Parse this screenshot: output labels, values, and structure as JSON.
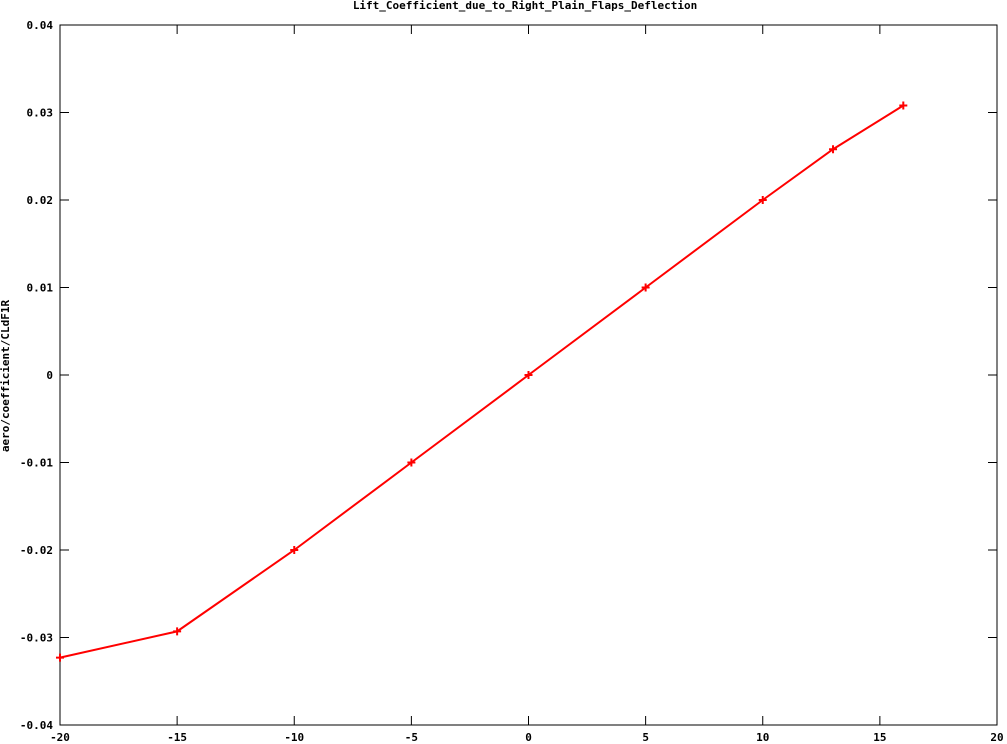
{
  "chart_data": {
    "type": "line",
    "title": "Lift_Coefficient_due_to_Right_Plain_Flaps_Deflection",
    "xlabel": "",
    "ylabel": "aero/coefficient/CLdF1R",
    "xlim": [
      -20,
      20
    ],
    "ylim": [
      -0.04,
      0.04
    ],
    "x_ticks": [
      -20,
      -15,
      -10,
      -5,
      0,
      5,
      10,
      15,
      20
    ],
    "y_ticks": [
      -0.04,
      -0.03,
      -0.02,
      -0.01,
      0,
      0.01,
      0.02,
      0.03,
      0.04
    ],
    "x_tick_labels": [
      "-20",
      "-15",
      "-10",
      "-5",
      "0",
      "5",
      "10",
      "15",
      "20"
    ],
    "y_tick_labels": [
      "-0.04",
      "-0.03",
      "-0.02",
      "-0.01",
      "0",
      "0.01",
      "0.02",
      "0.03",
      "0.04"
    ],
    "grid": false,
    "series": [
      {
        "name": "CLdF1R",
        "color": "#ff0000",
        "marker": "plus",
        "x": [
          -20,
          -15,
          -10,
          -5,
          0,
          5,
          10,
          13,
          16
        ],
        "y": [
          -0.0323,
          -0.0293,
          -0.02,
          -0.01,
          0,
          0.01,
          0.02,
          0.0258,
          0.0308
        ]
      }
    ]
  }
}
